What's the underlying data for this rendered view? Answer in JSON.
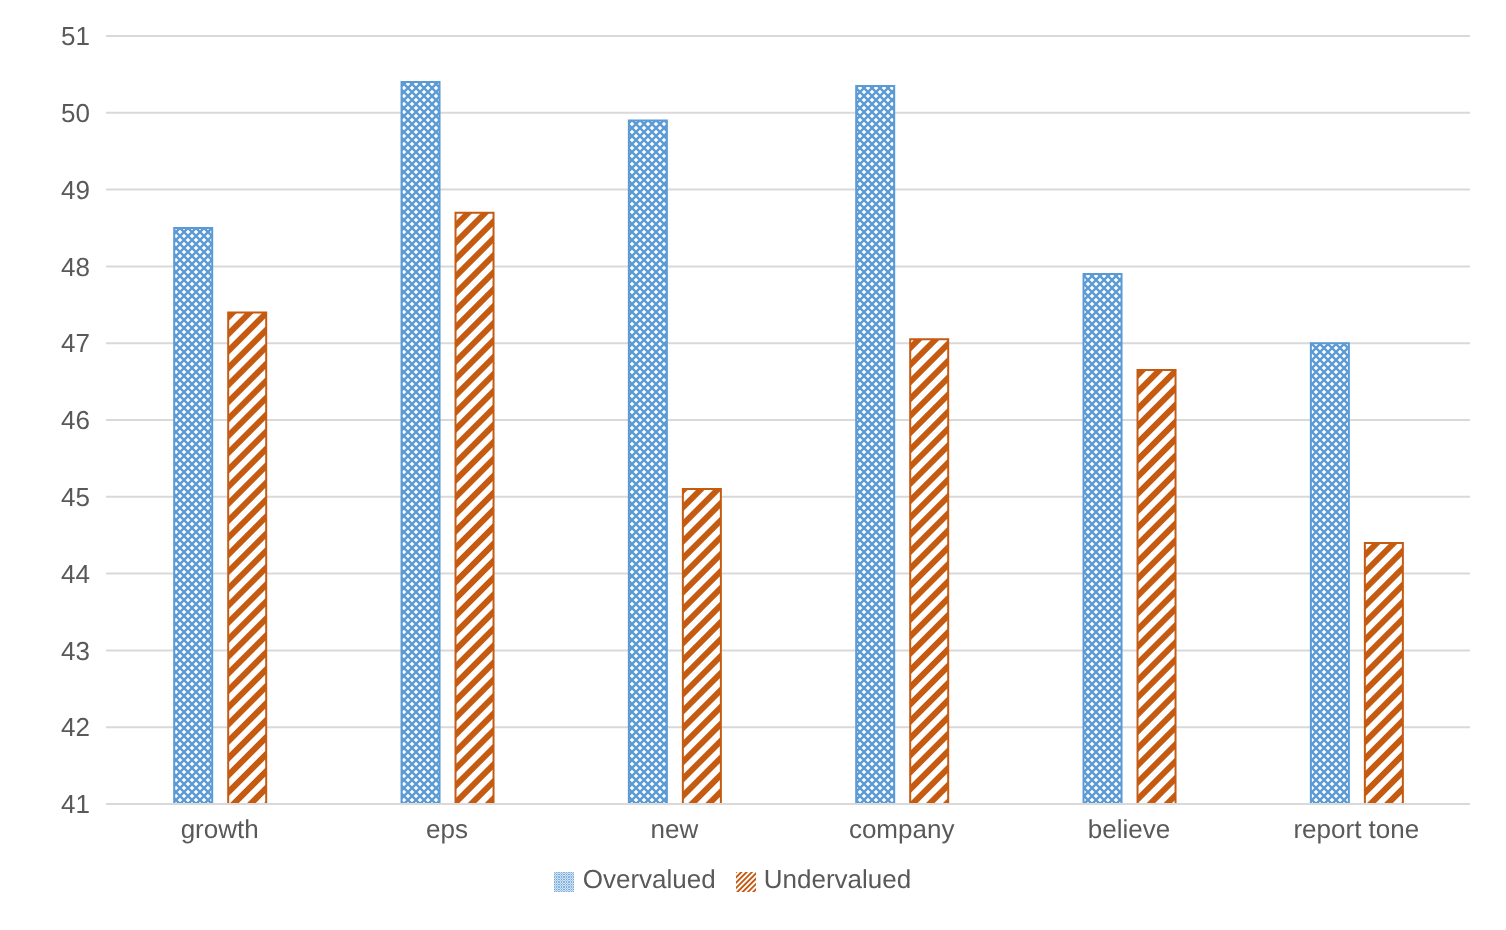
{
  "chart_data": {
    "type": "bar",
    "categories": [
      "growth",
      "eps",
      "new",
      "company",
      "believe",
      "report tone"
    ],
    "series": [
      {
        "name": "Overvalued",
        "color": "#5b9bd5",
        "values": [
          48.5,
          50.4,
          49.9,
          50.35,
          47.9,
          47.0
        ]
      },
      {
        "name": "Undervalued",
        "color": "#c55a11",
        "values": [
          47.4,
          48.7,
          45.1,
          47.05,
          46.65,
          44.4
        ]
      }
    ],
    "ylim": [
      41,
      51
    ],
    "yticks": [
      41,
      42,
      43,
      44,
      45,
      46,
      47,
      48,
      49,
      50,
      51
    ],
    "grid": "y",
    "legend": "bottom"
  }
}
